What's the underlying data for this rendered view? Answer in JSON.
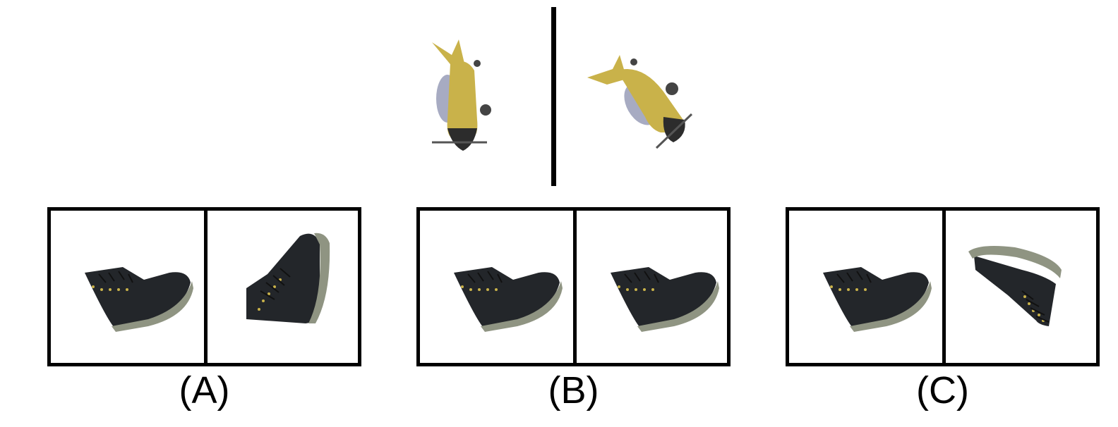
{
  "options": [
    {
      "id": "A",
      "label": "(A)"
    },
    {
      "id": "B",
      "label": "(B)"
    },
    {
      "id": "C",
      "label": "(C)"
    }
  ],
  "colors": {
    "airplane_body": "#c9b24a",
    "airplane_nose": "#2c2c2c",
    "airplane_wing_shadow": "#a7abc2",
    "shoe_upper": "#23262a",
    "shoe_sole": "#8f9482",
    "shoe_eyelet": "#c9b24a",
    "frame": "#000000"
  },
  "icons": {
    "reference_left": "airplane-icon",
    "reference_right": "airplane-icon",
    "option_image": "sneaker-icon"
  }
}
